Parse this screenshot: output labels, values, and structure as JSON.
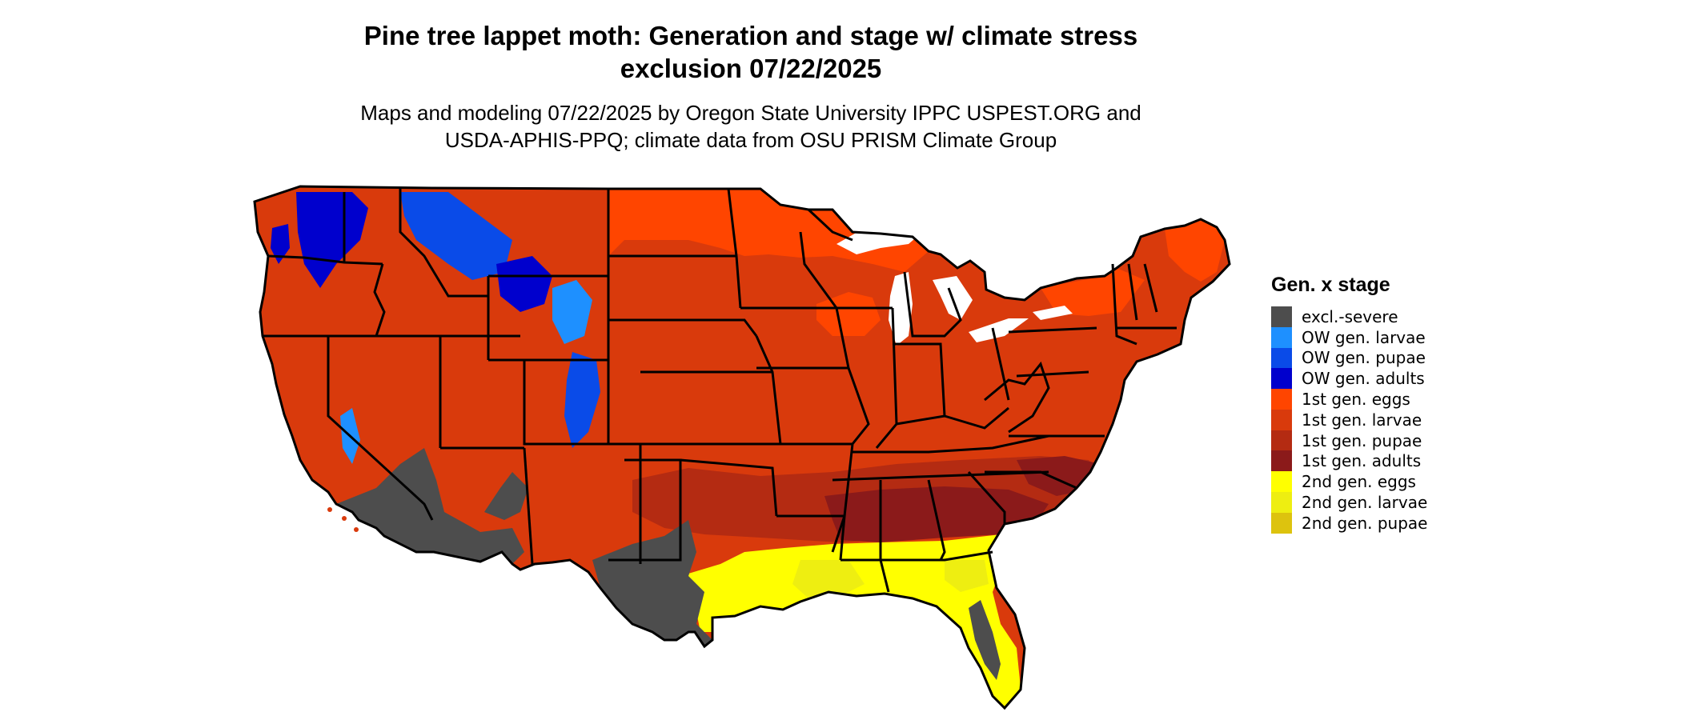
{
  "header": {
    "title_line1": "Pine tree lappet moth: Generation and stage w/ climate stress",
    "title_line2": "exclusion 07/22/2025",
    "subtitle_line1": "Maps and modeling 07/22/2025 by Oregon State University IPPC USPEST.ORG and",
    "subtitle_line2": "USDA-APHIS-PPQ; climate data from OSU PRISM Climate Group"
  },
  "legend": {
    "title": "Gen. x stage",
    "items": [
      {
        "label": "excl.-severe",
        "color": "#4d4d4d"
      },
      {
        "label": "OW gen. larvae",
        "color": "#1e90ff"
      },
      {
        "label": "OW gen. pupae",
        "color": "#0a4be8"
      },
      {
        "label": "OW gen. adults",
        "color": "#0000cd"
      },
      {
        "label": "1st gen. eggs",
        "color": "#ff4500"
      },
      {
        "label": "1st gen. larvae",
        "color": "#d93a0c"
      },
      {
        "label": "1st gen. pupae",
        "color": "#b42b12"
      },
      {
        "label": "1st gen. adults",
        "color": "#8b1a1a"
      },
      {
        "label": "2nd gen. eggs",
        "color": "#ffff00"
      },
      {
        "label": "2nd gen. larvae",
        "color": "#eeee11"
      },
      {
        "label": "2nd gen. pupae",
        "color": "#ddc30e"
      }
    ]
  }
}
